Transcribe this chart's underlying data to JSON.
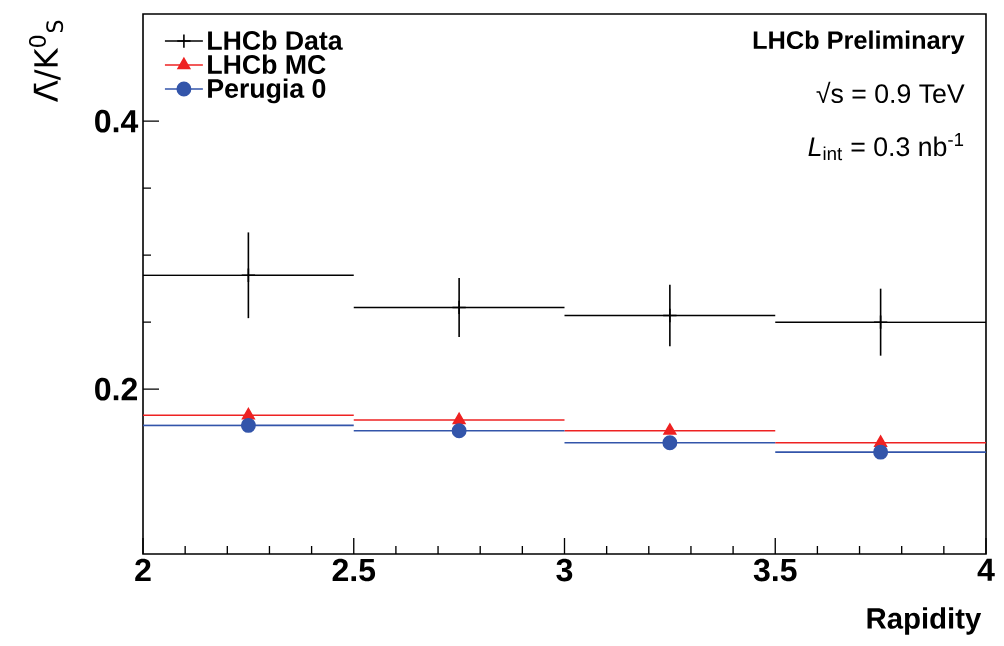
{
  "chart_data": {
    "type": "scatter",
    "xlabel": "Rapidity",
    "ylabel": "Λ̄/K$^{0}$$_{S}$",
    "x": [
      2.25,
      2.75,
      3.25,
      3.75
    ],
    "series": [
      {
        "name": "LHCb Data",
        "color": "#000000",
        "marker": "cross",
        "values": [
          0.285,
          0.261,
          0.255,
          0.25
        ],
        "errors": [
          0.032,
          0.022,
          0.023,
          0.025
        ],
        "xerrors": [
          0.25,
          0.25,
          0.25,
          0.25
        ]
      },
      {
        "name": "LHCb MC",
        "color": "#ee2222",
        "marker": "triangle",
        "values": [
          0.1805,
          0.177,
          0.169,
          0.16
        ],
        "xerrors": [
          0.25,
          0.25,
          0.25,
          0.25
        ]
      },
      {
        "name": "Perugia 0",
        "color": "#3355aa",
        "marker": "circle",
        "values": [
          0.173,
          0.169,
          0.16,
          0.153
        ],
        "xerrors": [
          0.25,
          0.25,
          0.25,
          0.25
        ]
      }
    ],
    "xlim": [
      2,
      4
    ],
    "ylim": [
      0.077,
      0.48
    ],
    "xticks": [
      2,
      2.5,
      3,
      3.5,
      4
    ],
    "yticks": [
      0.2,
      0.4
    ],
    "legend": "top left",
    "grid": false,
    "annotations": [
      "LHCb Preliminary",
      "√s = 0.9 TeV",
      "*L*$_{int}$ = 0.3 nb$^{-1}$"
    ]
  }
}
